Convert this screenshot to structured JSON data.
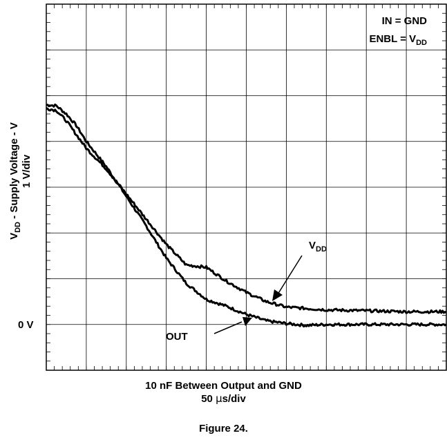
{
  "chart_data": {
    "type": "line",
    "title": "",
    "xlabel_line1": "10 nF Between Output and GND",
    "xlabel_line2_value": "50 ",
    "xlabel_line2_mu": "µ",
    "xlabel_line2_unit": "s/div",
    "ylabel_main": "V",
    "ylabel_sub": "DD",
    "ylabel_rest": " - Supply Voltage - V",
    "ylabel_line2": "1 V/div",
    "y_zero_label": "0 V",
    "conditions": {
      "line1": "IN = GND",
      "line2_main": "ENBL = V",
      "line2_sub": "DD"
    },
    "x_divisions": 10,
    "y_divisions": 8,
    "xlim": [
      0,
      10
    ],
    "ylim": [
      -1,
      7
    ],
    "grid": true,
    "series": [
      {
        "name": "VDD",
        "label_main": "V",
        "label_sub": "DD",
        "x": [
          0,
          0.25,
          0.5,
          0.75,
          1.0,
          1.5,
          2.0,
          2.5,
          3.0,
          3.5,
          4.0,
          4.5,
          5.0,
          5.5,
          6.0,
          6.5,
          7.0,
          8.0,
          9.0,
          10.0
        ],
        "y": [
          4.8,
          4.78,
          4.6,
          4.35,
          4.0,
          3.45,
          2.8,
          2.15,
          1.45,
          0.9,
          0.55,
          0.4,
          0.22,
          0.08,
          0.02,
          -0.02,
          0.0,
          0.0,
          0.0,
          0.0
        ]
      },
      {
        "name": "OUT",
        "label": "OUT",
        "x": [
          0,
          0.25,
          0.5,
          0.75,
          1.0,
          1.5,
          2.0,
          2.5,
          3.0,
          3.5,
          4.0,
          4.5,
          5.0,
          5.5,
          6.0,
          6.5,
          7.0,
          8.0,
          9.0,
          10.0
        ],
        "y": [
          4.72,
          4.68,
          4.45,
          4.15,
          3.85,
          3.4,
          2.85,
          2.3,
          1.75,
          1.3,
          1.25,
          0.95,
          0.7,
          0.5,
          0.38,
          0.35,
          0.32,
          0.3,
          0.28,
          0.28
        ]
      }
    ]
  }
}
